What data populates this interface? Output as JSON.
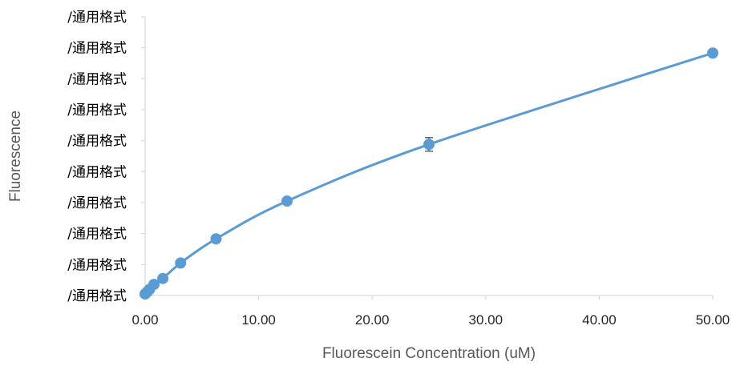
{
  "chart_data": {
    "type": "scatter",
    "title": "",
    "xlabel": "Fluorescein Concentration (uM)",
    "ylabel": "Fluorescence",
    "xlim": [
      0,
      50
    ],
    "x_ticks": [
      "0.00",
      "10.00",
      "20.00",
      "30.00",
      "40.00",
      "50.00"
    ],
    "y_ticks": [
      "/通用格式",
      "/通用格式",
      "/通用格式",
      "/通用格式",
      "/通用格式",
      "/通用格式",
      "/通用格式",
      "/通用格式",
      "/通用格式",
      "/通用格式"
    ],
    "ylim": [
      0,
      9
    ],
    "grid": false,
    "legend": "none",
    "colors": {
      "series": "#5b9bd5",
      "axis": "#d9d9d9",
      "error_bar": "#404040"
    },
    "series": [
      {
        "x": [
          0,
          0.1953,
          0.3906,
          0.7813,
          1.5625,
          3.125,
          6.25,
          12.5,
          25,
          50
        ],
        "y": [
          0.05,
          0.12,
          0.2,
          0.36,
          0.55,
          1.05,
          1.83,
          3.05,
          4.88,
          7.83
        ],
        "error": [
          0,
          0,
          0,
          0,
          0,
          0,
          0,
          0,
          0.22,
          0
        ]
      }
    ]
  }
}
